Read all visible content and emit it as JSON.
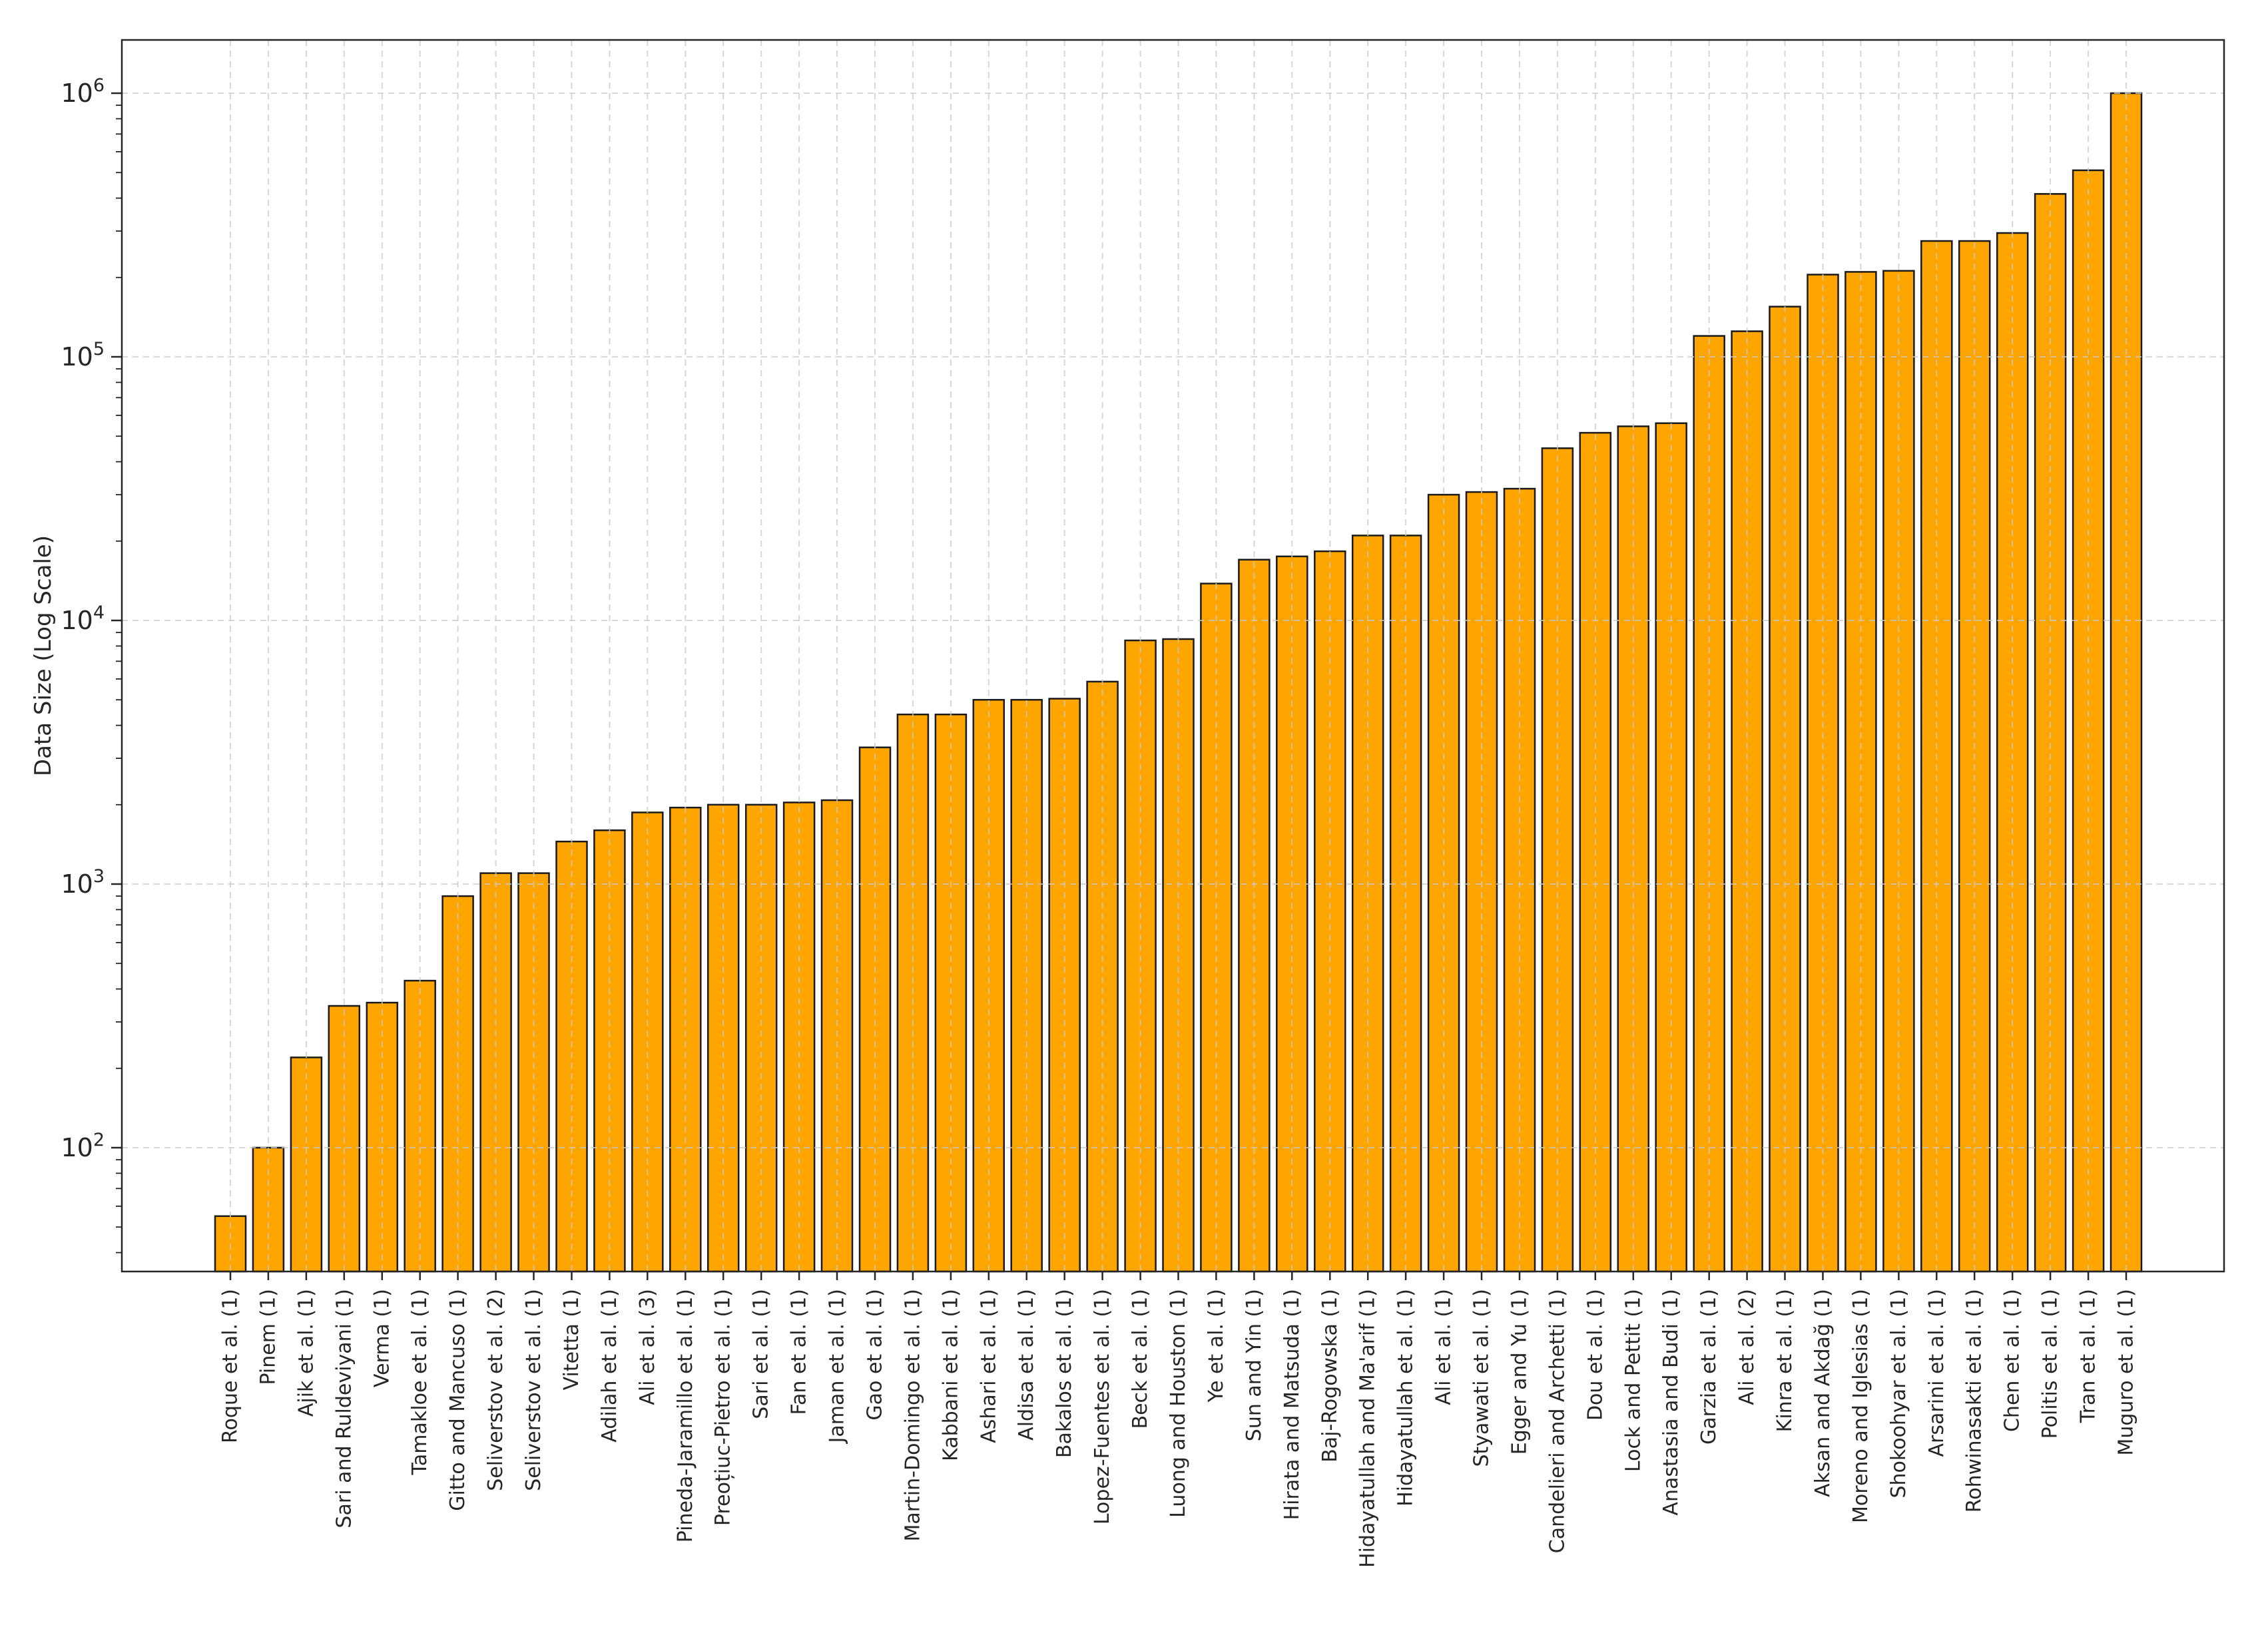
{
  "figure": {
    "background": "#ffffff",
    "text_color": "#262626"
  },
  "chart_data": {
    "type": "bar",
    "title": "",
    "xlabel": "",
    "ylabel": "Data Size (Log Scale)",
    "y_scale": "log",
    "ylim": [
      34,
      1600000
    ],
    "yticks": [
      100,
      1000,
      10000,
      100000,
      1000000
    ],
    "ytick_labels": [
      "10²",
      "10³",
      "10⁴",
      "10⁵",
      "10⁶"
    ],
    "grid": "dashed, both axes",
    "legend": "none",
    "bar_color": "#FFA500",
    "bar_edge_color": "#1A1A1A",
    "grid_color": "#C9C9C9",
    "categories": [
      "Roque et al. (1)",
      "Pinem (1)",
      "Ajik et al. (1)",
      "Sari and Ruldeviyani (1)",
      "Verma (1)",
      "Tamakloe et al. (1)",
      "Gitto and Mancuso (1)",
      "Seliverstov et al. (2)",
      "Seliverstov et al. (1)",
      "Vitetta (1)",
      "Adilah et al. (1)",
      "Ali et al. (3)",
      "Pineda-Jaramillo et al. (1)",
      "Preoțiuc-Pietro et al. (1)",
      "Sari et al. (1)",
      "Fan et al. (1)",
      "Jaman et al. (1)",
      "Gao et al. (1)",
      "Martin-Domingo et al. (1)",
      "Kabbani et al. (1)",
      "Ashari et al. (1)",
      "Aldisa et al. (1)",
      "Bakalos et al. (1)",
      "Lopez-Fuentes et al. (1)",
      "Beck et al. (1)",
      "Luong and Houston (1)",
      "Ye et al. (1)",
      "Sun and Yin (1)",
      "Hirata and Matsuda (1)",
      "Baj-Rogowska (1)",
      "Hidayatullah and Ma'arif (1)",
      "Hidayatullah et al. (1)",
      "Ali et al. (1)",
      "Styawati et al. (1)",
      "Egger and Yu (1)",
      "Candelieri and Archetti (1)",
      "Dou et al. (1)",
      "Lock and Pettit (1)",
      "Anastasia and Budi (1)",
      "Garzia et al. (1)",
      "Ali et al. (2)",
      "Kinra et al. (1)",
      "Aksan and Akdağ (1)",
      "Moreno and Iglesias (1)",
      "Shokoohyar et al. (1)",
      "Arsarini et al. (1)",
      "Rohwinasakti et al. (1)",
      "Chen et al. (1)",
      "Politis et al. (1)",
      "Tran et al. (1)",
      "Muguro et al. (1)"
    ],
    "values": [
      55,
      100,
      220,
      345,
      355,
      430,
      900,
      1100,
      1100,
      1450,
      1600,
      1870,
      1950,
      2000,
      2000,
      2040,
      2080,
      3300,
      4400,
      4400,
      5000,
      5000,
      5050,
      5860,
      8400,
      8500,
      13800,
      17000,
      17500,
      18300,
      21000,
      21000,
      30000,
      30700,
      31600,
      45000,
      51500,
      54500,
      56000,
      120000,
      125000,
      155000,
      205000,
      210000,
      212000,
      275000,
      275000,
      295000,
      415000,
      510000,
      1000000
    ]
  }
}
